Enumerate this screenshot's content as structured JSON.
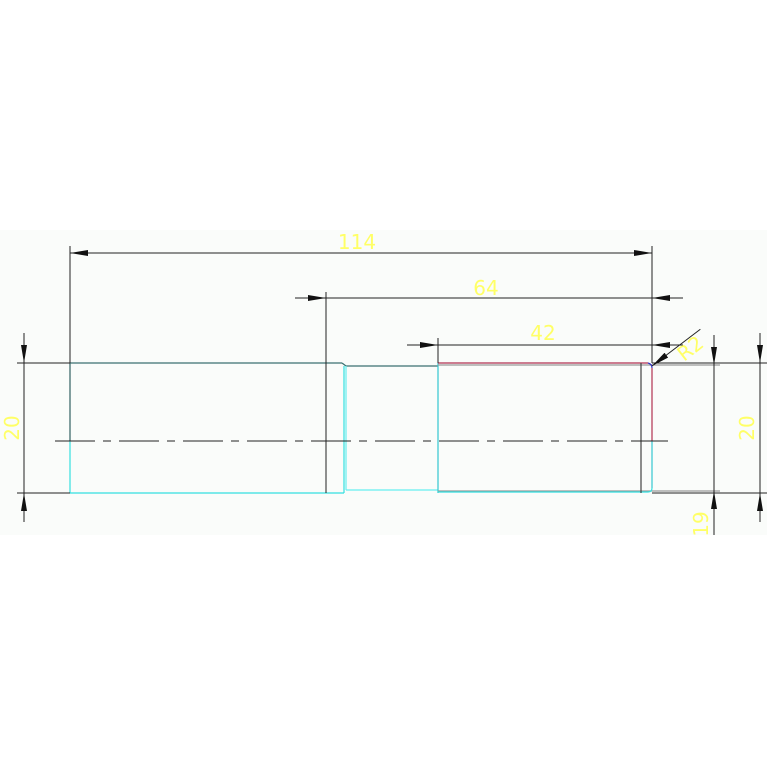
{
  "drawing": {
    "dimensions": {
      "overall_length": "114",
      "length_64": "64",
      "length_42": "42",
      "radius": "R2",
      "left_diameter": "20",
      "right_diameter": "20",
      "right_end_diameter": "19"
    },
    "colors": {
      "background_band": "#fafcfa",
      "dimension_line": "#202020",
      "dimension_text": "#ffff66",
      "part_outline_cyan": "#33e0e0",
      "part_outline_red": "#b03050",
      "fillet_blue": "#3030c0",
      "centerline": "#202020"
    }
  }
}
